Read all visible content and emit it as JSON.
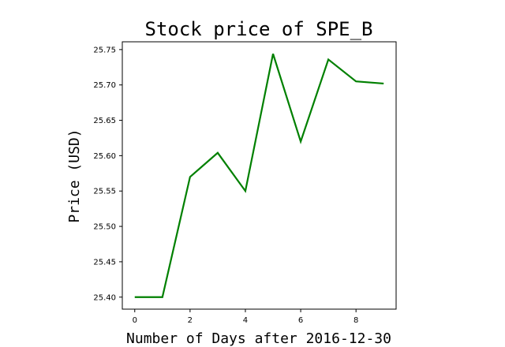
{
  "chart_data": {
    "type": "line",
    "title": "Stock price of SPE_B",
    "xlabel": "Number of Days after 2016-12-30",
    "ylabel": "Price (USD)",
    "xlim": [
      -0.45,
      9.45
    ],
    "ylim": [
      25.383,
      25.761
    ],
    "xticks": [
      0,
      2,
      4,
      6,
      8
    ],
    "yticks": [
      25.4,
      25.45,
      25.5,
      25.55,
      25.6,
      25.65,
      25.7,
      25.75
    ],
    "grid": false,
    "series": [
      {
        "color": "#008000",
        "x": [
          0,
          1,
          2,
          3,
          4,
          5,
          6,
          7,
          8,
          9
        ],
        "y": [
          25.4,
          25.4,
          25.57,
          25.604,
          25.55,
          25.744,
          25.62,
          25.736,
          25.705,
          25.702
        ]
      }
    ]
  }
}
